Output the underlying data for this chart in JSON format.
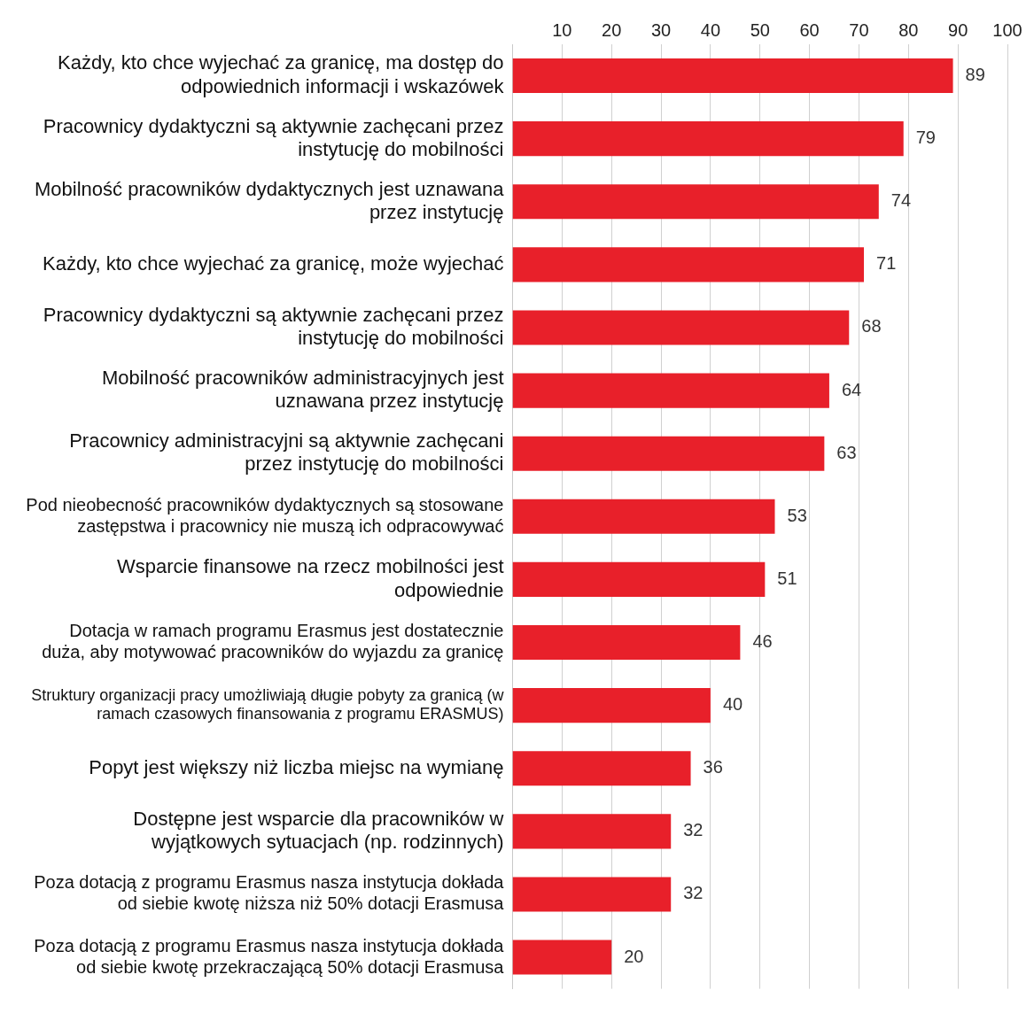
{
  "chart_data": {
    "type": "bar",
    "orientation": "horizontal",
    "categories": [
      "Każdy, kto chce wyjechać za granicę, ma dostęp do odpowiednich informacji i wskazówek",
      "Pracownicy dydaktyczni są aktywnie zachęcani przez instytucję do mobilności",
      "Mobilność pracowników dydaktycznych jest uznawana przez instytucję",
      "Każdy, kto chce wyjechać za granicę, może wyjechać",
      "Pracownicy dydaktyczni są aktywnie zachęcani przez instytucję do mobilności",
      "Mobilność pracowników administracyjnych jest uznawana przez instytucję",
      "Pracownicy administracyjni są aktywnie zachęcani przez instytucję do mobilności",
      "Pod nieobecność pracowników dydaktycznych są stosowane zastępstwa i pracownicy nie muszą ich odpracowywać",
      "Wsparcie finansowe na rzecz mobilności jest odpowiednie",
      "Dotacja w ramach programu Erasmus jest dostatecznie duża, aby motywować pracowników do wyjazdu za granicę",
      "Struktury organizacji pracy umożliwiają długie pobyty za granicą (w ramach czasowych finansowania z programu ERASMUS)",
      "Popyt jest większy niż liczba miejsc na wymianę",
      "Dostępne jest wsparcie dla pracowników w wyjątkowych sytuacjach (np. rodzinnych)",
      "Poza dotacją z programu Erasmus nasza instytucja dokłada od siebie kwotę niższa niż 50% dotacji Erasmusa",
      "Poza dotacją z programu Erasmus nasza instytucja dokłada od siebie kwotę przekraczającą 50% dotacji Erasmusa"
    ],
    "values": [
      89,
      79,
      74,
      71,
      68,
      64,
      63,
      53,
      51,
      46,
      40,
      36,
      32,
      32,
      20
    ],
    "color": "#e8202a",
    "xlim": [
      0,
      100
    ],
    "xticks": [
      10,
      20,
      30,
      40,
      50,
      60,
      70,
      80,
      90,
      100
    ],
    "grid": "x",
    "data_labels": true,
    "legend": false
  }
}
